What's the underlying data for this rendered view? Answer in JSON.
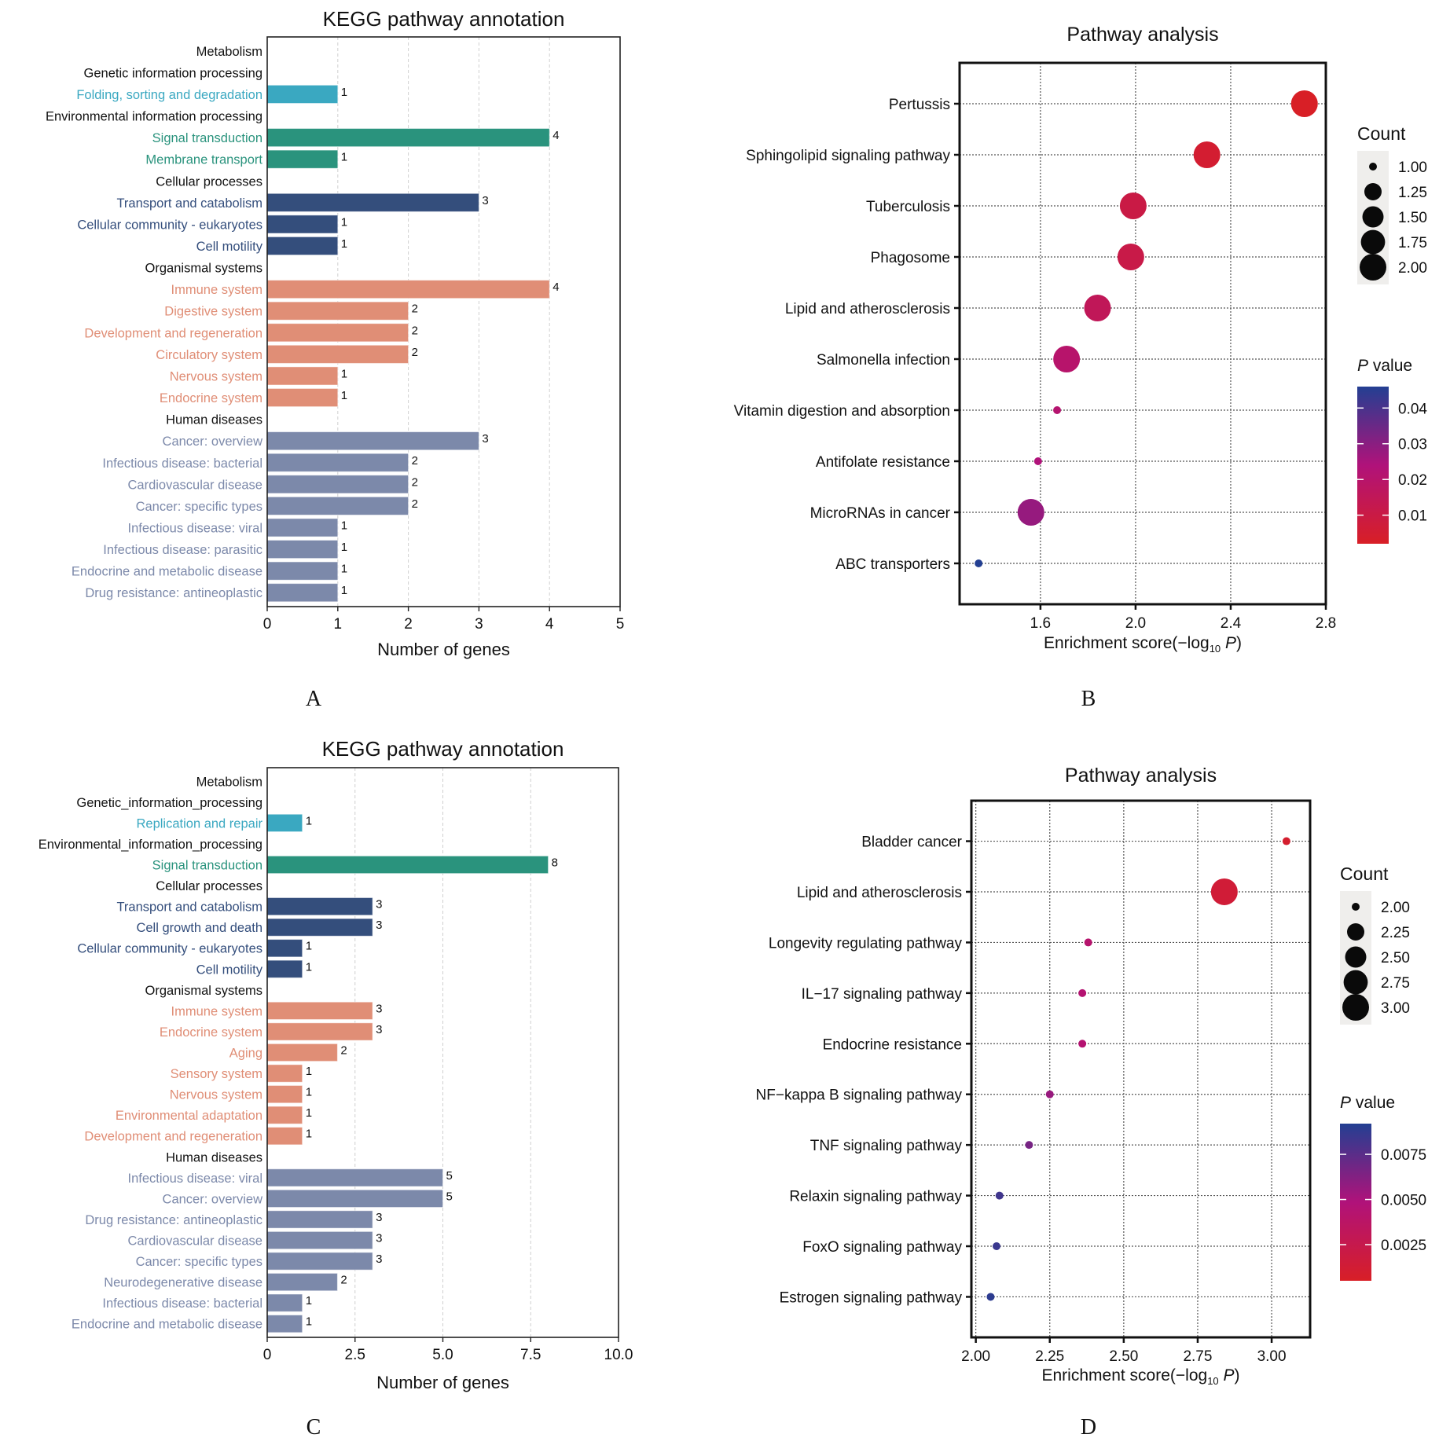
{
  "chart_data": [
    {
      "panel": "A",
      "type": "bar",
      "orientation": "horizontal",
      "title": "KEGG pathway annotation",
      "xlabel": "Number of genes",
      "ylabel": "",
      "xlim": [
        0,
        5
      ],
      "xticks": [
        "0",
        "1",
        "2",
        "3",
        "4",
        "5"
      ],
      "xtick_values": [
        0,
        1,
        2,
        3,
        4,
        5
      ],
      "grid": "vertical-dashed",
      "rows": [
        {
          "label": "Metabolism",
          "kind": "header"
        },
        {
          "label": "Genetic  information  processing",
          "kind": "header"
        },
        {
          "label": "Folding, sorting and degradation",
          "kind": "bar",
          "group": "genetic",
          "value": 1
        },
        {
          "label": "Environmental  information  processing",
          "kind": "header"
        },
        {
          "label": "Signal transduction",
          "kind": "bar",
          "group": "environmental",
          "value": 4
        },
        {
          "label": "Membrane transport",
          "kind": "bar",
          "group": "environmental",
          "value": 1
        },
        {
          "label": "Cellular processes",
          "kind": "header"
        },
        {
          "label": "Transport and catabolism",
          "kind": "bar",
          "group": "cellular",
          "value": 3
        },
        {
          "label": "Cellular community - eukaryotes",
          "kind": "bar",
          "group": "cellular",
          "value": 1
        },
        {
          "label": "Cell motility",
          "kind": "bar",
          "group": "cellular",
          "value": 1
        },
        {
          "label": "Organismal systems",
          "kind": "header"
        },
        {
          "label": "Immune system",
          "kind": "bar",
          "group": "organismal",
          "value": 4
        },
        {
          "label": "Digestive system",
          "kind": "bar",
          "group": "organismal",
          "value": 2
        },
        {
          "label": "Development and regeneration",
          "kind": "bar",
          "group": "organismal",
          "value": 2
        },
        {
          "label": "Circulatory system",
          "kind": "bar",
          "group": "organismal",
          "value": 2
        },
        {
          "label": "Nervous system",
          "kind": "bar",
          "group": "organismal",
          "value": 1
        },
        {
          "label": "Endocrine system",
          "kind": "bar",
          "group": "organismal",
          "value": 1
        },
        {
          "label": "Human diseases",
          "kind": "header"
        },
        {
          "label": "Cancer: overview",
          "kind": "bar",
          "group": "human",
          "value": 3
        },
        {
          "label": "Infectious disease: bacterial",
          "kind": "bar",
          "group": "human",
          "value": 2
        },
        {
          "label": "Cardiovascular disease",
          "kind": "bar",
          "group": "human",
          "value": 2
        },
        {
          "label": "Cancer: specific types",
          "kind": "bar",
          "group": "human",
          "value": 2
        },
        {
          "label": "Infectious disease: viral",
          "kind": "bar",
          "group": "human",
          "value": 1
        },
        {
          "label": "Infectious disease: parasitic",
          "kind": "bar",
          "group": "human",
          "value": 1
        },
        {
          "label": "Endocrine and metabolic disease",
          "kind": "bar",
          "group": "human",
          "value": 1
        },
        {
          "label": "Drug resistance: antineoplastic",
          "kind": "bar",
          "group": "human",
          "value": 1
        }
      ]
    },
    {
      "panel": "B",
      "type": "scatter",
      "subtype": "bubble",
      "title": "Pathway analysis",
      "xlabel_main": "Enrichment score(−log",
      "xlabel_sub": "10",
      "xlabel_italic": "P",
      "xlabel_close": ")",
      "xlim": [
        1.26,
        2.8
      ],
      "xticks": [
        "1.6",
        "2.0",
        "2.4",
        "2.8"
      ],
      "xtick_values": [
        1.6,
        2.0,
        2.4,
        2.8
      ],
      "grid": "dotted",
      "points": [
        {
          "label": "Pertussis",
          "x": 2.71,
          "count": 2,
          "p": 0.002
        },
        {
          "label": "Sphingolipid signaling pathway",
          "x": 2.3,
          "count": 2,
          "p": 0.005
        },
        {
          "label": "Tuberculosis",
          "x": 1.99,
          "count": 2,
          "p": 0.01
        },
        {
          "label": "Phagosome",
          "x": 1.98,
          "count": 2,
          "p": 0.011
        },
        {
          "label": "Lipid and atherosclerosis",
          "x": 1.84,
          "count": 2,
          "p": 0.015
        },
        {
          "label": "Salmonella infection",
          "x": 1.71,
          "count": 2,
          "p": 0.02
        },
        {
          "label": "Vitamin digestion and absorption",
          "x": 1.67,
          "count": 1,
          "p": 0.021
        },
        {
          "label": "Antifolate resistance",
          "x": 1.59,
          "count": 1,
          "p": 0.024
        },
        {
          "label": "MicroRNAs in cancer",
          "x": 1.56,
          "count": 2,
          "p": 0.028
        },
        {
          "label": "ABC transporters",
          "x": 1.34,
          "count": 1,
          "p": 0.046
        }
      ],
      "size_legend": {
        "title": "Count",
        "values": [
          "1.00",
          "1.25",
          "1.50",
          "1.75",
          "2.00"
        ],
        "range": [
          1,
          2
        ]
      },
      "color_legend": {
        "title_italic": "P",
        "title_rest": " value",
        "ticks": [
          "0.04",
          "0.03",
          "0.02",
          "0.01"
        ],
        "tick_values": [
          0.04,
          0.03,
          0.02,
          0.01
        ],
        "range": [
          0.002,
          0.046
        ]
      }
    },
    {
      "panel": "C",
      "type": "bar",
      "orientation": "horizontal",
      "title": "KEGG pathway annotation",
      "xlabel": "Number of genes",
      "ylabel": "",
      "xlim": [
        0,
        10
      ],
      "xticks": [
        "0",
        "2.5",
        "5.0",
        "7.5",
        "10.0"
      ],
      "xtick_values": [
        0,
        2.5,
        5,
        7.5,
        10
      ],
      "grid": "vertical-dashed",
      "rows": [
        {
          "label": "Metabolism",
          "kind": "header"
        },
        {
          "label": "Genetic_information_processing",
          "kind": "header"
        },
        {
          "label": "Replication and repair",
          "kind": "bar",
          "group": "genetic",
          "value": 1
        },
        {
          "label": "Environmental_information_processing",
          "kind": "header"
        },
        {
          "label": "Signal transduction",
          "kind": "bar",
          "group": "environmental",
          "value": 8
        },
        {
          "label": "Cellular processes",
          "kind": "header"
        },
        {
          "label": "Transport and catabolism",
          "kind": "bar",
          "group": "cellular",
          "value": 3
        },
        {
          "label": "Cell growth and death",
          "kind": "bar",
          "group": "cellular",
          "value": 3
        },
        {
          "label": "Cellular community - eukaryotes",
          "kind": "bar",
          "group": "cellular",
          "value": 1
        },
        {
          "label": "Cell motility",
          "kind": "bar",
          "group": "cellular",
          "value": 1
        },
        {
          "label": "Organismal systems",
          "kind": "header"
        },
        {
          "label": "Immune system",
          "kind": "bar",
          "group": "organismal",
          "value": 3
        },
        {
          "label": "Endocrine system",
          "kind": "bar",
          "group": "organismal",
          "value": 3
        },
        {
          "label": "Aging",
          "kind": "bar",
          "group": "organismal",
          "value": 2
        },
        {
          "label": "Sensory system",
          "kind": "bar",
          "group": "organismal",
          "value": 1
        },
        {
          "label": "Nervous system",
          "kind": "bar",
          "group": "organismal",
          "value": 1
        },
        {
          "label": "Environmental adaptation",
          "kind": "bar",
          "group": "organismal",
          "value": 1
        },
        {
          "label": "Development and regeneration",
          "kind": "bar",
          "group": "organismal",
          "value": 1
        },
        {
          "label": "Human diseases",
          "kind": "header"
        },
        {
          "label": "Infectious disease: viral",
          "kind": "bar",
          "group": "human",
          "value": 5
        },
        {
          "label": "Cancer: overview",
          "kind": "bar",
          "group": "human",
          "value": 5
        },
        {
          "label": "Drug resistance: antineoplastic",
          "kind": "bar",
          "group": "human",
          "value": 3
        },
        {
          "label": "Cardiovascular disease",
          "kind": "bar",
          "group": "human",
          "value": 3
        },
        {
          "label": "Cancer: specific types",
          "kind": "bar",
          "group": "human",
          "value": 3
        },
        {
          "label": "Neurodegenerative disease",
          "kind": "bar",
          "group": "human",
          "value": 2
        },
        {
          "label": "Infectious disease: bacterial",
          "kind": "bar",
          "group": "human",
          "value": 1
        },
        {
          "label": "Endocrine and metabolic disease",
          "kind": "bar",
          "group": "human",
          "value": 1
        }
      ]
    },
    {
      "panel": "D",
      "type": "scatter",
      "subtype": "bubble",
      "title": "Pathway analysis",
      "xlabel_main": "Enrichment score(−log",
      "xlabel_sub": "10",
      "xlabel_italic": "P",
      "xlabel_close": ")",
      "xlim": [
        1.985,
        3.13
      ],
      "xticks": [
        "2.00",
        "2.25",
        "2.50",
        "2.75",
        "3.00"
      ],
      "xtick_values": [
        2.0,
        2.25,
        2.5,
        2.75,
        3.0
      ],
      "grid": "dotted",
      "points": [
        {
          "label": "Bladder cancer",
          "x": 3.05,
          "count": 2,
          "p": 0.0009
        },
        {
          "label": "Lipid and atherosclerosis",
          "x": 2.84,
          "count": 3,
          "p": 0.0014
        },
        {
          "label": "Longevity regulating pathway",
          "x": 2.38,
          "count": 2,
          "p": 0.0042
        },
        {
          "label": "IL−17 signaling pathway",
          "x": 2.36,
          "count": 2,
          "p": 0.0044
        },
        {
          "label": "Endocrine resistance",
          "x": 2.36,
          "count": 2,
          "p": 0.0044
        },
        {
          "label": "NF−kappa B signaling pathway",
          "x": 2.25,
          "count": 2,
          "p": 0.0056
        },
        {
          "label": "TNF signaling pathway",
          "x": 2.18,
          "count": 2,
          "p": 0.0066
        },
        {
          "label": "Relaxin signaling pathway",
          "x": 2.08,
          "count": 2,
          "p": 0.0083
        },
        {
          "label": "FoxO signaling pathway",
          "x": 2.07,
          "count": 2,
          "p": 0.0085
        },
        {
          "label": "Estrogen signaling pathway",
          "x": 2.05,
          "count": 2,
          "p": 0.0089
        }
      ],
      "size_legend": {
        "title": "Count",
        "values": [
          "2.00",
          "2.25",
          "2.50",
          "2.75",
          "3.00"
        ],
        "range": [
          2,
          3
        ]
      },
      "color_legend": {
        "title_italic": "P",
        "title_rest": " value",
        "ticks": [
          "0.0075",
          "0.0050",
          "0.0025"
        ],
        "tick_values": [
          0.0075,
          0.005,
          0.0025
        ],
        "range": [
          0.0005,
          0.0092
        ]
      }
    }
  ],
  "colors": {
    "genetic": "#3aa8c1",
    "environmental": "#2a937d",
    "cellular": "#344e7c",
    "organismal": "#e08e76",
    "human": "#7c89aa",
    "header": "#111111",
    "p_low": "#d81f26",
    "p_mid": "#b0127a",
    "p_high": "#233f92"
  },
  "panel_letters": [
    "A",
    "B",
    "C",
    "D"
  ]
}
